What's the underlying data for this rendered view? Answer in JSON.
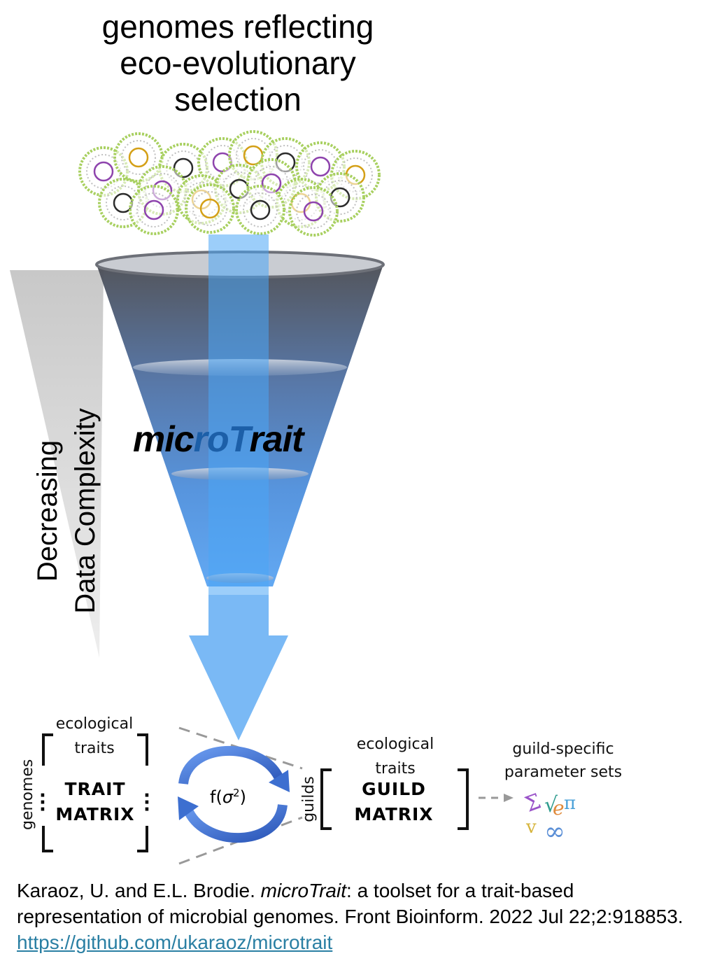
{
  "title": {
    "line1": "genomes reflecting",
    "line2": "eco-evolutionary",
    "line3": "selection"
  },
  "funnel": {
    "brand_part1": "mic",
    "brand_part2": "roT",
    "brand_part3": "rait",
    "side_label_line1": "Decreasing",
    "side_label_line2": "Data Complexity"
  },
  "trait_matrix": {
    "top_label_line1": "ecological",
    "top_label_line2": "traits",
    "side_label": "genomes",
    "line1": "TRAIT",
    "line2": "MATRIX"
  },
  "transform": {
    "label_pre": "f(",
    "sigma": "σ",
    "label_post": ")",
    "sup": "2"
  },
  "guild_matrix": {
    "top_label_line1": "ecological",
    "top_label_line2": "traits",
    "side_label": "guilds",
    "line1": "GUILD",
    "line2": "MATRIX"
  },
  "output": {
    "label_line1": "guild-specific",
    "label_line2": "parameter sets",
    "icon": "math-symbols-icon"
  },
  "citation": {
    "text1": "Karaoz, U. and E.L. Brodie. ",
    "italic": "microTrait",
    "text2": ": a toolset for a trait-based representation of microbial genomes. Front Bioinform.  2022 Jul 22;2:918853. ",
    "link": "https://github.com/ukaraoz/microtrait"
  },
  "colors": {
    "funnel_top": "#4a4d55",
    "funnel_bottom": "#3a8ff0",
    "arrow": "#7ab9f5",
    "stream": "#4aa0f0",
    "cycle_arrow": "#3d6fd0",
    "link": "#2a7fa3"
  }
}
